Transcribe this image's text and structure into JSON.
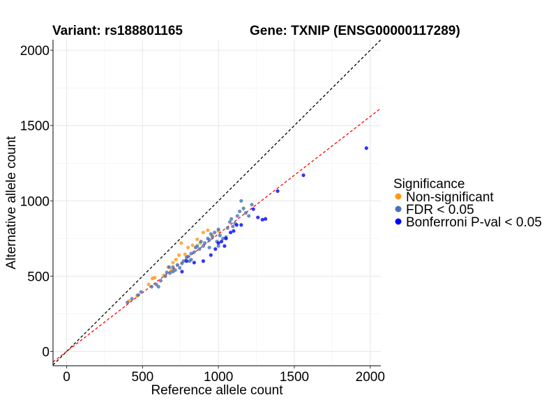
{
  "chart_data": {
    "type": "scatter",
    "title_left": "Variant: rs188801165",
    "title_right": "Gene: TXNIP (ENSG00000117289)",
    "xlabel": "Reference allele count",
    "ylabel": "Alternative allele count",
    "xlim": [
      -90,
      2070
    ],
    "ylim": [
      -95,
      2070
    ],
    "xticks": [
      0,
      500,
      1000,
      1500,
      2000
    ],
    "yticks": [
      0,
      500,
      1000,
      1500,
      2000
    ],
    "grid": true,
    "legend": {
      "title": "Significance",
      "position": "right",
      "entries": [
        {
          "label": "Non-significant",
          "color": "#FF9914"
        },
        {
          "label": "FDR < 0.05",
          "color": "#4A72B0"
        },
        {
          "label": "Bonferroni P-val < 0.05",
          "color": "#0000FF"
        }
      ]
    },
    "reference_lines": [
      {
        "name": "identity",
        "slope": 1.0,
        "intercept": 0,
        "color": "#000000",
        "style": "dashed"
      },
      {
        "name": "fit",
        "slope": 0.78,
        "intercept": 0,
        "color": "#FF0000",
        "style": "dashed"
      }
    ],
    "series": [
      {
        "key": "nonsig",
        "color": "#FF9914",
        "points": [
          [
            410,
            335
          ],
          [
            465,
            370
          ],
          [
            540,
            445
          ],
          [
            565,
            485
          ],
          [
            580,
            490
          ],
          [
            640,
            505
          ],
          [
            670,
            560
          ],
          [
            690,
            540
          ],
          [
            700,
            590
          ],
          [
            720,
            610
          ],
          [
            740,
            640
          ],
          [
            755,
            720
          ],
          [
            780,
            645
          ],
          [
            800,
            690
          ],
          [
            830,
            705
          ],
          [
            860,
            745
          ],
          [
            880,
            720
          ],
          [
            900,
            790
          ],
          [
            930,
            805
          ],
          [
            960,
            770
          ],
          [
            1000,
            800
          ]
        ]
      },
      {
        "key": "fdr",
        "color": "#4A72B0",
        "points": [
          [
            400,
            325
          ],
          [
            430,
            350
          ],
          [
            470,
            375
          ],
          [
            490,
            395
          ],
          [
            560,
            430
          ],
          [
            590,
            445
          ],
          [
            605,
            430
          ],
          [
            620,
            470
          ],
          [
            650,
            500
          ],
          [
            660,
            525
          ],
          [
            675,
            560
          ],
          [
            680,
            520
          ],
          [
            700,
            530
          ],
          [
            715,
            540
          ],
          [
            730,
            575
          ],
          [
            745,
            555
          ],
          [
            760,
            585
          ],
          [
            770,
            600
          ],
          [
            790,
            625
          ],
          [
            800,
            630
          ],
          [
            810,
            600
          ],
          [
            820,
            650
          ],
          [
            840,
            660
          ],
          [
            850,
            690
          ],
          [
            860,
            700
          ],
          [
            875,
            680
          ],
          [
            885,
            730
          ],
          [
            900,
            700
          ],
          [
            910,
            720
          ],
          [
            930,
            750
          ],
          [
            940,
            740
          ],
          [
            950,
            780
          ],
          [
            960,
            760
          ],
          [
            975,
            790
          ],
          [
            990,
            730
          ],
          [
            1000,
            810
          ],
          [
            1010,
            770
          ],
          [
            1030,
            750
          ],
          [
            1050,
            760
          ],
          [
            1060,
            820
          ],
          [
            1075,
            860
          ],
          [
            1085,
            880
          ],
          [
            1095,
            830
          ],
          [
            1110,
            850
          ],
          [
            1125,
            900
          ],
          [
            1140,
            930
          ],
          [
            1150,
            1000
          ],
          [
            1165,
            950
          ],
          [
            1180,
            920
          ],
          [
            1200,
            900
          ],
          [
            1220,
            975
          ],
          [
            1000,
            700
          ],
          [
            940,
            690
          ],
          [
            820,
            610
          ],
          [
            700,
            560
          ]
        ]
      },
      {
        "key": "bonf",
        "color": "#0000FF",
        "points": [
          [
            760,
            530
          ],
          [
            790,
            600
          ],
          [
            840,
            590
          ],
          [
            900,
            600
          ],
          [
            950,
            640
          ],
          [
            980,
            680
          ],
          [
            1000,
            720
          ],
          [
            1020,
            730
          ],
          [
            1040,
            700
          ],
          [
            1050,
            750
          ],
          [
            1080,
            790
          ],
          [
            1100,
            800
          ],
          [
            1120,
            840
          ],
          [
            1150,
            840
          ],
          [
            1230,
            945
          ],
          [
            1260,
            890
          ],
          [
            1290,
            875
          ],
          [
            1310,
            880
          ],
          [
            1390,
            1065
          ],
          [
            1560,
            1170
          ],
          [
            1975,
            1350
          ]
        ]
      }
    ]
  }
}
